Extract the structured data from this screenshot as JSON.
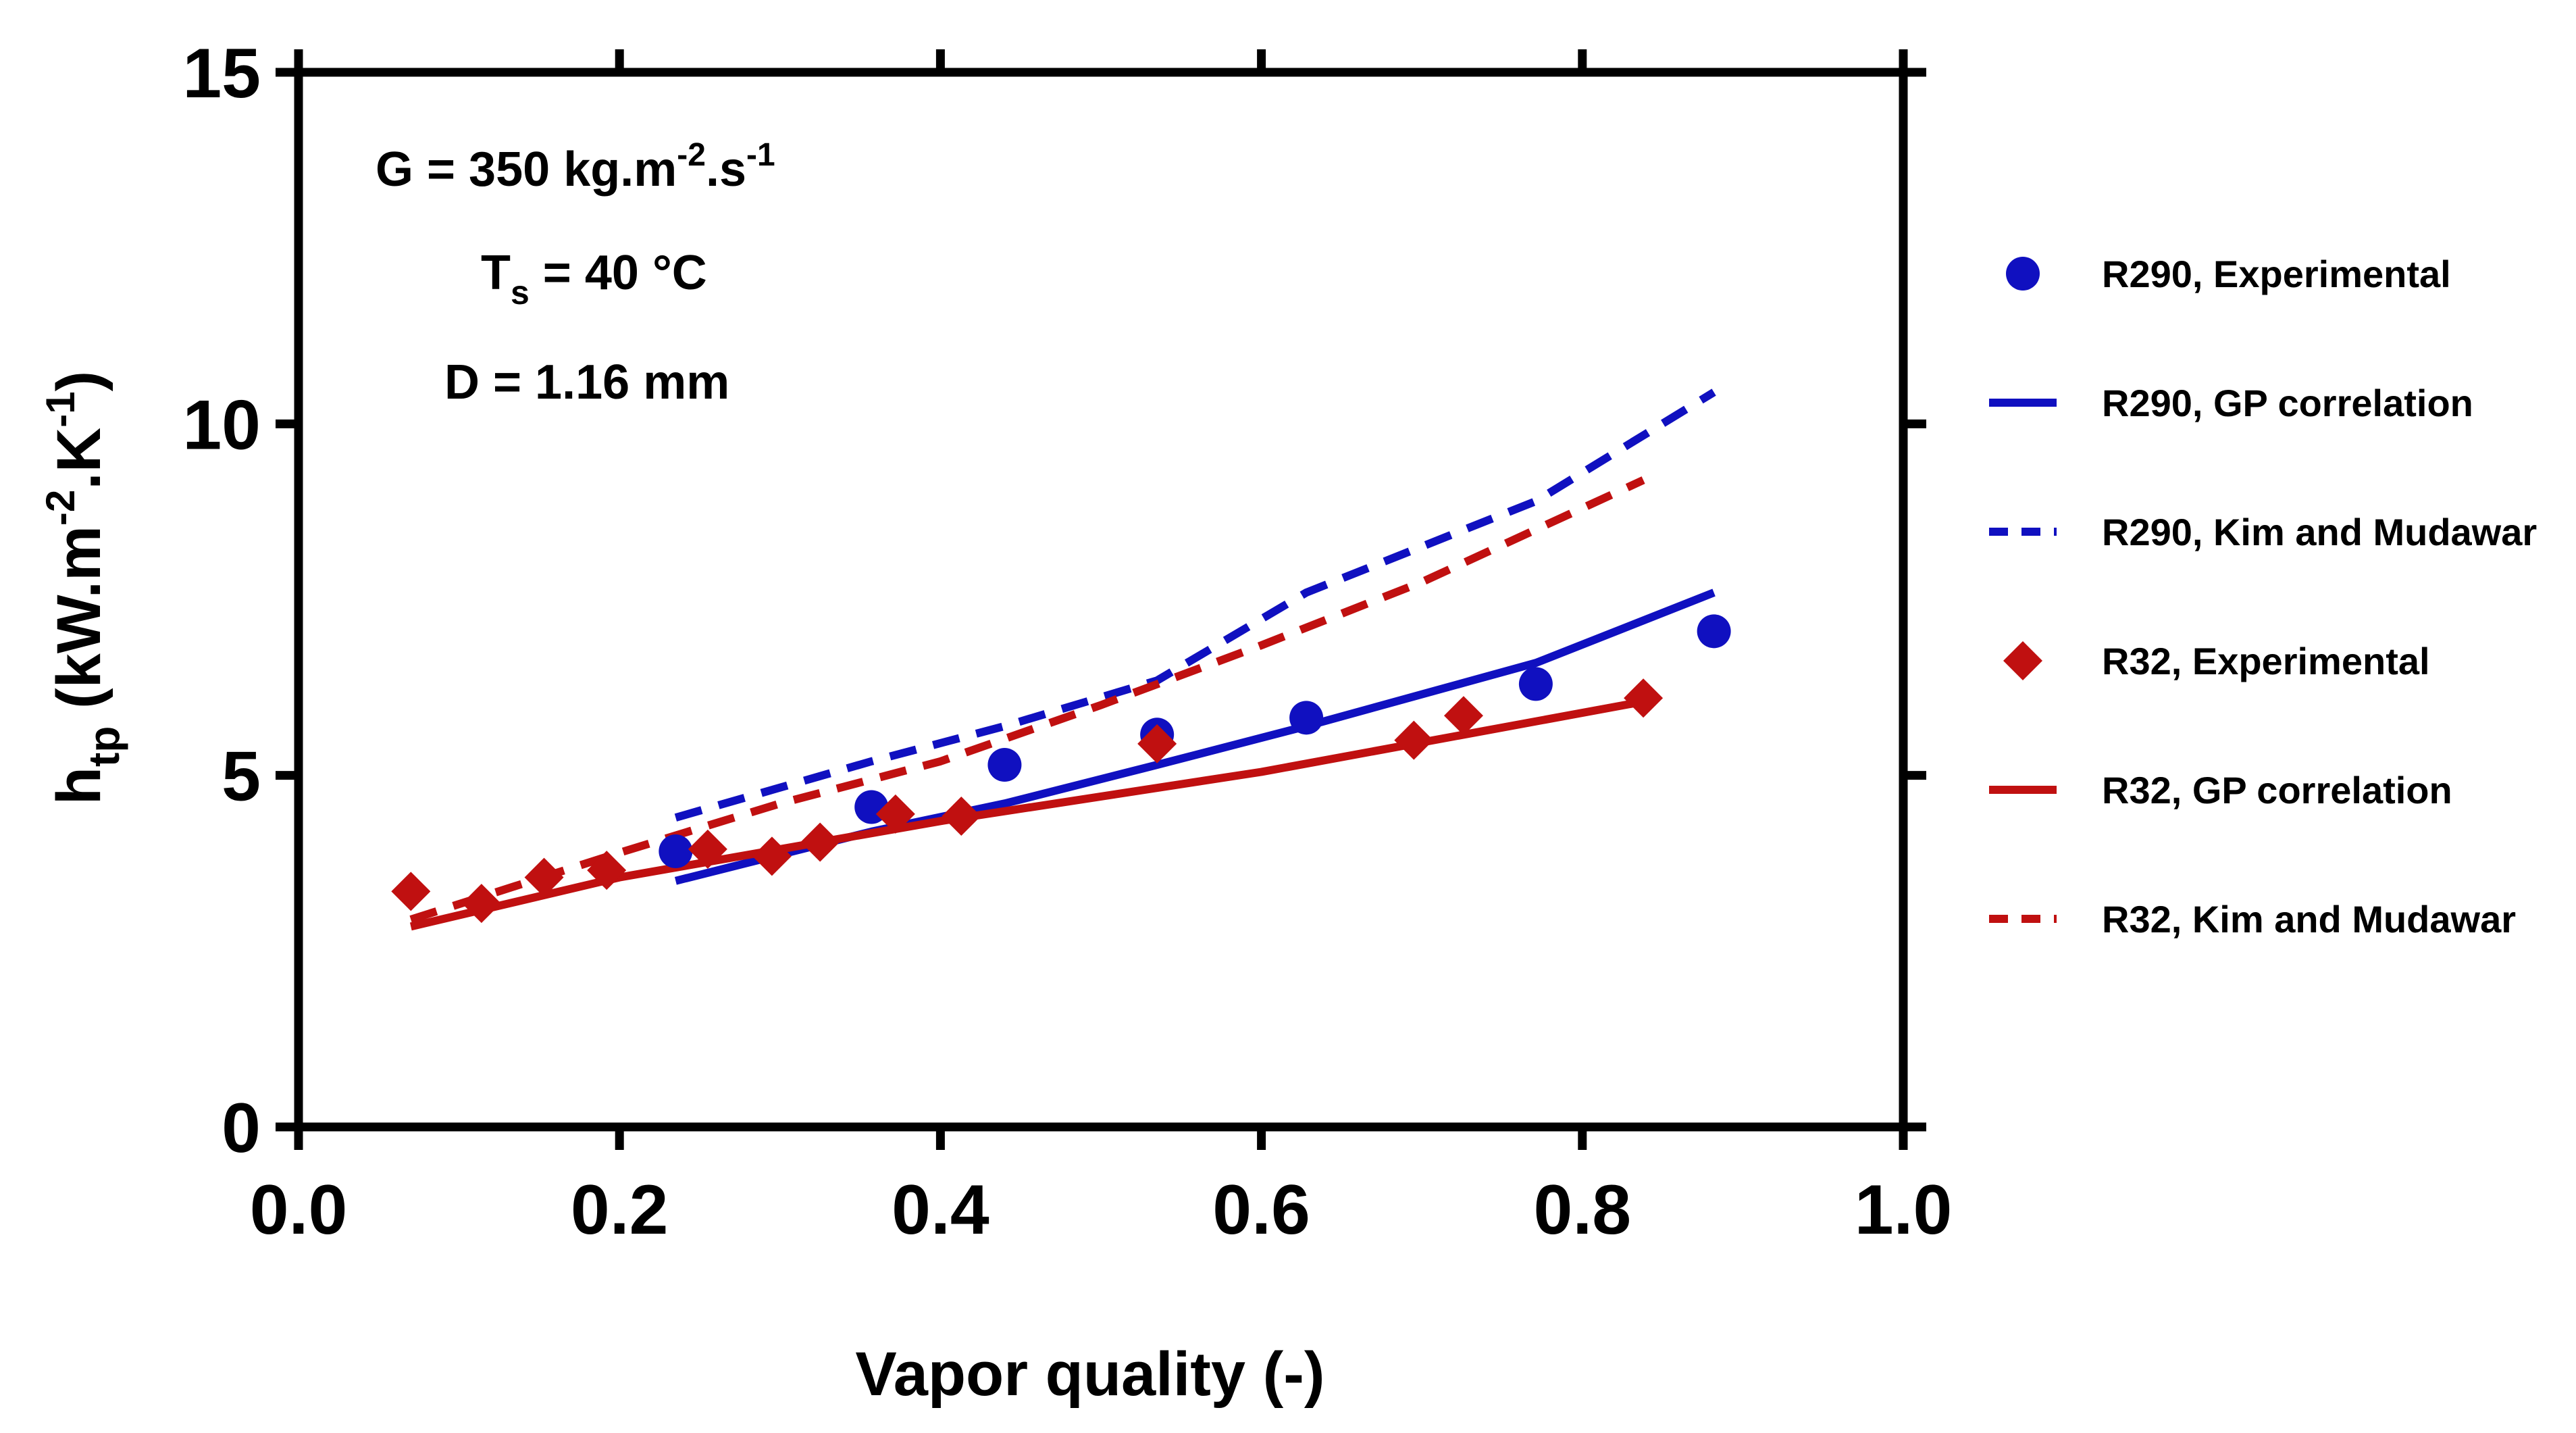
{
  "chart_data": {
    "type": "line",
    "title": "",
    "xlabel": "Vapor quality (-)",
    "ylabel_main": "h",
    "ylabel_sub": "tp",
    "ylabel_rest1": " (kW.m",
    "ylabel_sup1": "-2",
    "ylabel_rest2": ".K",
    "ylabel_sup2": "-1",
    "ylabel_rest3": ")",
    "xlim": [
      0.0,
      1.0
    ],
    "ylim": [
      0,
      15
    ],
    "xticks": [
      0.0,
      0.2,
      0.4,
      0.6,
      0.8,
      1.0
    ],
    "xtick_labels": [
      "0.0",
      "0.2",
      "0.4",
      "0.6",
      "0.8",
      "1.0"
    ],
    "yticks": [
      0,
      5,
      10,
      15
    ],
    "ytick_labels": [
      "0",
      "5",
      "10",
      "15"
    ],
    "grid": false,
    "legend_position": "right",
    "annotations": {
      "g_main": "G = 350 kg.m",
      "g_sup1": "-2",
      "g_mid": ".s",
      "g_sup2": "-1",
      "t_main": "T",
      "t_sub": "s",
      "t_rest": " = 40 °C",
      "d": "D = 1.16 mm"
    },
    "series": [
      {
        "name": "R290, Experimental",
        "kind": "scatter",
        "marker": "circle",
        "color": "#1010C0",
        "x": [
          0.235,
          0.357,
          0.44,
          0.535,
          0.628,
          0.771,
          0.882
        ],
        "y": [
          3.92,
          4.55,
          5.15,
          5.58,
          5.82,
          6.3,
          7.05
        ]
      },
      {
        "name": "R290, GP correlation",
        "kind": "line",
        "dash": "solid",
        "color": "#1010C0",
        "x": [
          0.235,
          0.357,
          0.44,
          0.535,
          0.628,
          0.771,
          0.882
        ],
        "y": [
          3.5,
          4.2,
          4.6,
          5.15,
          5.7,
          6.6,
          7.6
        ]
      },
      {
        "name": "R290, Kim and Mudawar",
        "kind": "line",
        "dash": "dashed",
        "color": "#1010C0",
        "x": [
          0.235,
          0.357,
          0.44,
          0.535,
          0.628,
          0.771,
          0.882
        ],
        "y": [
          4.4,
          5.2,
          5.7,
          6.35,
          7.6,
          8.9,
          10.45
        ]
      },
      {
        "name": "R32, Experimental",
        "kind": "scatter",
        "marker": "diamond",
        "color": "#C01010",
        "x": [
          0.07,
          0.114,
          0.153,
          0.192,
          0.255,
          0.295,
          0.325,
          0.372,
          0.413,
          0.535,
          0.695,
          0.726,
          0.838
        ],
        "y": [
          3.35,
          3.18,
          3.55,
          3.65,
          3.95,
          3.85,
          4.05,
          4.45,
          4.42,
          5.45,
          5.5,
          5.85,
          6.1
        ]
      },
      {
        "name": "R32, GP correlation",
        "kind": "line",
        "dash": "solid",
        "color": "#C01010",
        "x": [
          0.07,
          0.2,
          0.4,
          0.6,
          0.838
        ],
        "y": [
          2.85,
          3.55,
          4.35,
          5.05,
          6.05
        ]
      },
      {
        "name": "R32, Kim and Mudawar",
        "kind": "line",
        "dash": "dashed",
        "color": "#C01010",
        "x": [
          0.07,
          0.2,
          0.3,
          0.4,
          0.5,
          0.6,
          0.7,
          0.838
        ],
        "y": [
          2.95,
          3.9,
          4.6,
          5.2,
          6.0,
          6.85,
          7.75,
          9.2
        ]
      }
    ]
  }
}
